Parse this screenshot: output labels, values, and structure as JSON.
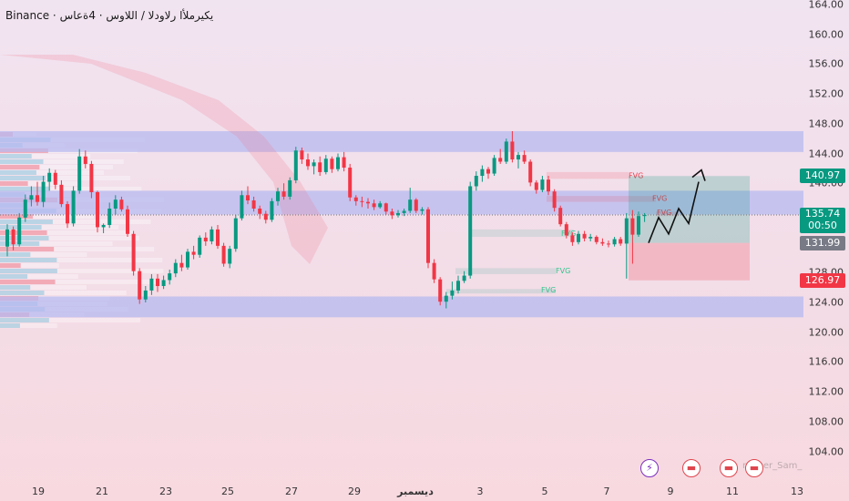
{
  "header": {
    "title": "Binance · يكيرملأا رلاودلا / اللاوس · 4ةعاس"
  },
  "axis": {
    "y_ticks": [
      "164.00",
      "160.00",
      "156.00",
      "152.00",
      "148.00",
      "144.00",
      "140.00",
      "136.00",
      "132.00",
      "128.00",
      "124.00",
      "120.00",
      "116.00",
      "112.00",
      "108.00",
      "104.00"
    ],
    "x_ticks": [
      "19",
      "21",
      "23",
      "25",
      "27",
      "29",
      "ديسمبر",
      "3",
      "5",
      "7",
      "9",
      "11",
      "13"
    ]
  },
  "price_labels": {
    "target": "140.97",
    "last_price": "135.74",
    "countdown": "00:50",
    "entry": "131.99",
    "stop": "126.97"
  },
  "fvg_labels": [
    "FVG",
    "FVG",
    "FVG",
    "FVG",
    "FVG",
    "FVG"
  ],
  "events": [
    {
      "icon": "lightning-icon",
      "glyph": "⚡"
    },
    {
      "icon": "us-flag-icon",
      "glyph": "▬"
    },
    {
      "icon": "us-flag-icon",
      "glyph": "▬"
    },
    {
      "icon": "us-flag-icon",
      "glyph": "▬"
    }
  ],
  "author": "nasser_Sam_",
  "colors": {
    "up": "#089981",
    "down": "#f23645",
    "zone": "#b7b9f0",
    "target_label": "#089981",
    "stop_label": "#f23645",
    "entry_label": "#787b86",
    "last_label": "#089981"
  },
  "chart_data": {
    "type": "candlestick",
    "y_scale": {
      "min": 102,
      "max": 164,
      "unit": "price"
    },
    "ohlc": [
      [
        131.5,
        134.5,
        130.2,
        133.8
      ],
      [
        133.8,
        134.2,
        131.0,
        131.8
      ],
      [
        131.8,
        136.0,
        131.5,
        135.4
      ],
      [
        135.4,
        138.5,
        134.8,
        137.8
      ],
      [
        137.8,
        139.6,
        136.9,
        138.4
      ],
      [
        138.4,
        140.2,
        137.0,
        137.5
      ],
      [
        137.5,
        141.0,
        136.8,
        140.2
      ],
      [
        140.2,
        142.0,
        139.0,
        141.4
      ],
      [
        141.4,
        141.8,
        139.2,
        139.8
      ],
      [
        139.8,
        140.4,
        136.8,
        137.2
      ],
      [
        137.2,
        137.6,
        134.0,
        134.6
      ],
      [
        134.6,
        139.6,
        134.2,
        139.0
      ],
      [
        139.0,
        144.6,
        138.6,
        143.6
      ],
      [
        143.6,
        144.4,
        142.0,
        142.6
      ],
      [
        142.6,
        143.0,
        138.0,
        138.8
      ],
      [
        138.8,
        139.0,
        133.4,
        134.1
      ],
      [
        134.1,
        134.6,
        133.3,
        134.4
      ],
      [
        134.4,
        137.4,
        134.0,
        136.6
      ],
      [
        136.6,
        138.4,
        135.8,
        137.8
      ],
      [
        137.8,
        138.2,
        136.2,
        136.5
      ],
      [
        136.5,
        137.0,
        132.8,
        133.2
      ],
      [
        133.2,
        133.6,
        127.6,
        128.2
      ],
      [
        128.2,
        128.6,
        123.8,
        124.4
      ],
      [
        124.4,
        126.2,
        124.0,
        125.6
      ],
      [
        125.6,
        127.8,
        125.0,
        127.2
      ],
      [
        127.2,
        127.8,
        125.4,
        126.2
      ],
      [
        126.2,
        127.6,
        125.8,
        127.0
      ],
      [
        127.0,
        128.4,
        126.4,
        127.9
      ],
      [
        127.9,
        129.8,
        127.4,
        129.3
      ],
      [
        129.3,
        130.4,
        128.2,
        128.7
      ],
      [
        128.7,
        131.2,
        128.4,
        130.8
      ],
      [
        130.8,
        131.6,
        129.8,
        130.4
      ],
      [
        130.4,
        133.0,
        130.0,
        132.7
      ],
      [
        132.7,
        133.4,
        131.6,
        132.2
      ],
      [
        132.2,
        134.2,
        131.8,
        133.8
      ],
      [
        133.8,
        134.4,
        131.2,
        131.6
      ],
      [
        131.6,
        132.0,
        128.8,
        129.2
      ],
      [
        129.2,
        131.6,
        128.6,
        131.2
      ],
      [
        131.2,
        135.8,
        130.8,
        135.3
      ],
      [
        135.3,
        139.0,
        135.0,
        138.4
      ],
      [
        138.4,
        139.6,
        137.2,
        137.7
      ],
      [
        137.7,
        138.2,
        136.2,
        136.6
      ],
      [
        136.6,
        137.0,
        135.2,
        135.9
      ],
      [
        135.9,
        136.3,
        134.6,
        135.1
      ],
      [
        135.1,
        138.0,
        134.8,
        137.6
      ],
      [
        137.6,
        139.4,
        137.0,
        138.9
      ],
      [
        138.9,
        140.0,
        137.8,
        138.2
      ],
      [
        138.2,
        140.8,
        137.8,
        140.4
      ],
      [
        140.4,
        144.9,
        140.0,
        144.4
      ],
      [
        144.4,
        144.8,
        142.6,
        143.2
      ],
      [
        143.2,
        144.0,
        141.8,
        142.3
      ],
      [
        142.3,
        143.2,
        141.2,
        142.8
      ],
      [
        142.8,
        143.6,
        141.0,
        141.5
      ],
      [
        141.5,
        143.8,
        141.2,
        143.3
      ],
      [
        143.3,
        143.6,
        141.4,
        141.9
      ],
      [
        141.9,
        144.0,
        141.6,
        143.5
      ],
      [
        143.5,
        144.2,
        141.6,
        142.1
      ],
      [
        142.1,
        142.6,
        137.6,
        138.1
      ],
      [
        138.1,
        138.4,
        137.0,
        137.6
      ],
      [
        137.6,
        138.2,
        136.8,
        137.5
      ],
      [
        137.5,
        138.0,
        136.6,
        137.3
      ],
      [
        137.3,
        137.8,
        136.4,
        136.8
      ],
      [
        136.8,
        137.6,
        136.6,
        137.3
      ],
      [
        137.3,
        137.4,
        135.8,
        136.2
      ],
      [
        136.2,
        136.6,
        135.2,
        135.7
      ],
      [
        135.7,
        136.4,
        135.4,
        136.0
      ],
      [
        136.0,
        136.6,
        135.6,
        136.3
      ],
      [
        136.3,
        139.4,
        136.0,
        137.8
      ],
      [
        137.8,
        138.0,
        136.0,
        136.3
      ],
      [
        136.3,
        136.8,
        135.8,
        136.5
      ],
      [
        136.5,
        136.8,
        128.6,
        129.3
      ],
      [
        129.3,
        129.8,
        126.6,
        127.1
      ],
      [
        127.1,
        127.4,
        123.6,
        124.1
      ],
      [
        124.1,
        125.4,
        123.2,
        124.9
      ],
      [
        124.9,
        126.8,
        124.4,
        125.6
      ],
      [
        125.6,
        127.6,
        125.2,
        126.9
      ],
      [
        126.9,
        128.2,
        126.6,
        127.6
      ],
      [
        127.6,
        140.2,
        127.2,
        139.6
      ],
      [
        139.6,
        141.6,
        139.0,
        141.0
      ],
      [
        141.0,
        142.4,
        140.2,
        141.9
      ],
      [
        141.9,
        142.2,
        140.6,
        141.3
      ],
      [
        141.3,
        143.8,
        141.0,
        143.4
      ],
      [
        143.4,
        144.6,
        142.6,
        142.9
      ],
      [
        142.9,
        146.0,
        142.6,
        145.6
      ],
      [
        145.6,
        147.0,
        142.8,
        143.2
      ],
      [
        143.2,
        144.2,
        142.0,
        143.8
      ],
      [
        143.8,
        144.4,
        142.6,
        142.9
      ],
      [
        142.9,
        143.2,
        139.6,
        140.1
      ],
      [
        140.1,
        140.4,
        138.6,
        139.1
      ],
      [
        139.1,
        141.0,
        138.8,
        140.5
      ],
      [
        140.5,
        141.0,
        138.4,
        138.9
      ],
      [
        138.9,
        139.2,
        136.2,
        136.7
      ],
      [
        136.7,
        137.0,
        134.2,
        134.5
      ],
      [
        134.5,
        134.8,
        132.6,
        133.0
      ],
      [
        133.0,
        133.4,
        131.6,
        132.1
      ],
      [
        132.1,
        133.6,
        131.8,
        133.2
      ],
      [
        133.2,
        133.6,
        132.2,
        132.6
      ],
      [
        132.6,
        133.2,
        132.2,
        132.8
      ],
      [
        132.8,
        133.0,
        131.8,
        132.1
      ],
      [
        132.1,
        132.6,
        131.6,
        131.9
      ],
      [
        131.9,
        132.3,
        131.4,
        131.8
      ],
      [
        131.8,
        132.8,
        131.5,
        132.5
      ],
      [
        132.5,
        132.8,
        131.6,
        131.9
      ],
      [
        131.9,
        136.0,
        127.2,
        135.3
      ],
      [
        135.3,
        136.4,
        129.2,
        133.1
      ],
      [
        133.1,
        136.2,
        132.8,
        135.6
      ],
      [
        135.6,
        136.0,
        134.8,
        135.74
      ]
    ],
    "zones": [
      {
        "top": 147.0,
        "bottom": 144.2
      },
      {
        "top": 139.0,
        "bottom": 135.8
      },
      {
        "top": 124.8,
        "bottom": 122.0
      }
    ],
    "position": {
      "target": 140.97,
      "entry": 131.99,
      "stop": 126.97
    },
    "projection": [
      131.99,
      135.4,
      133.2,
      136.6,
      134.6,
      140.2
    ],
    "last_price": 135.74
  }
}
